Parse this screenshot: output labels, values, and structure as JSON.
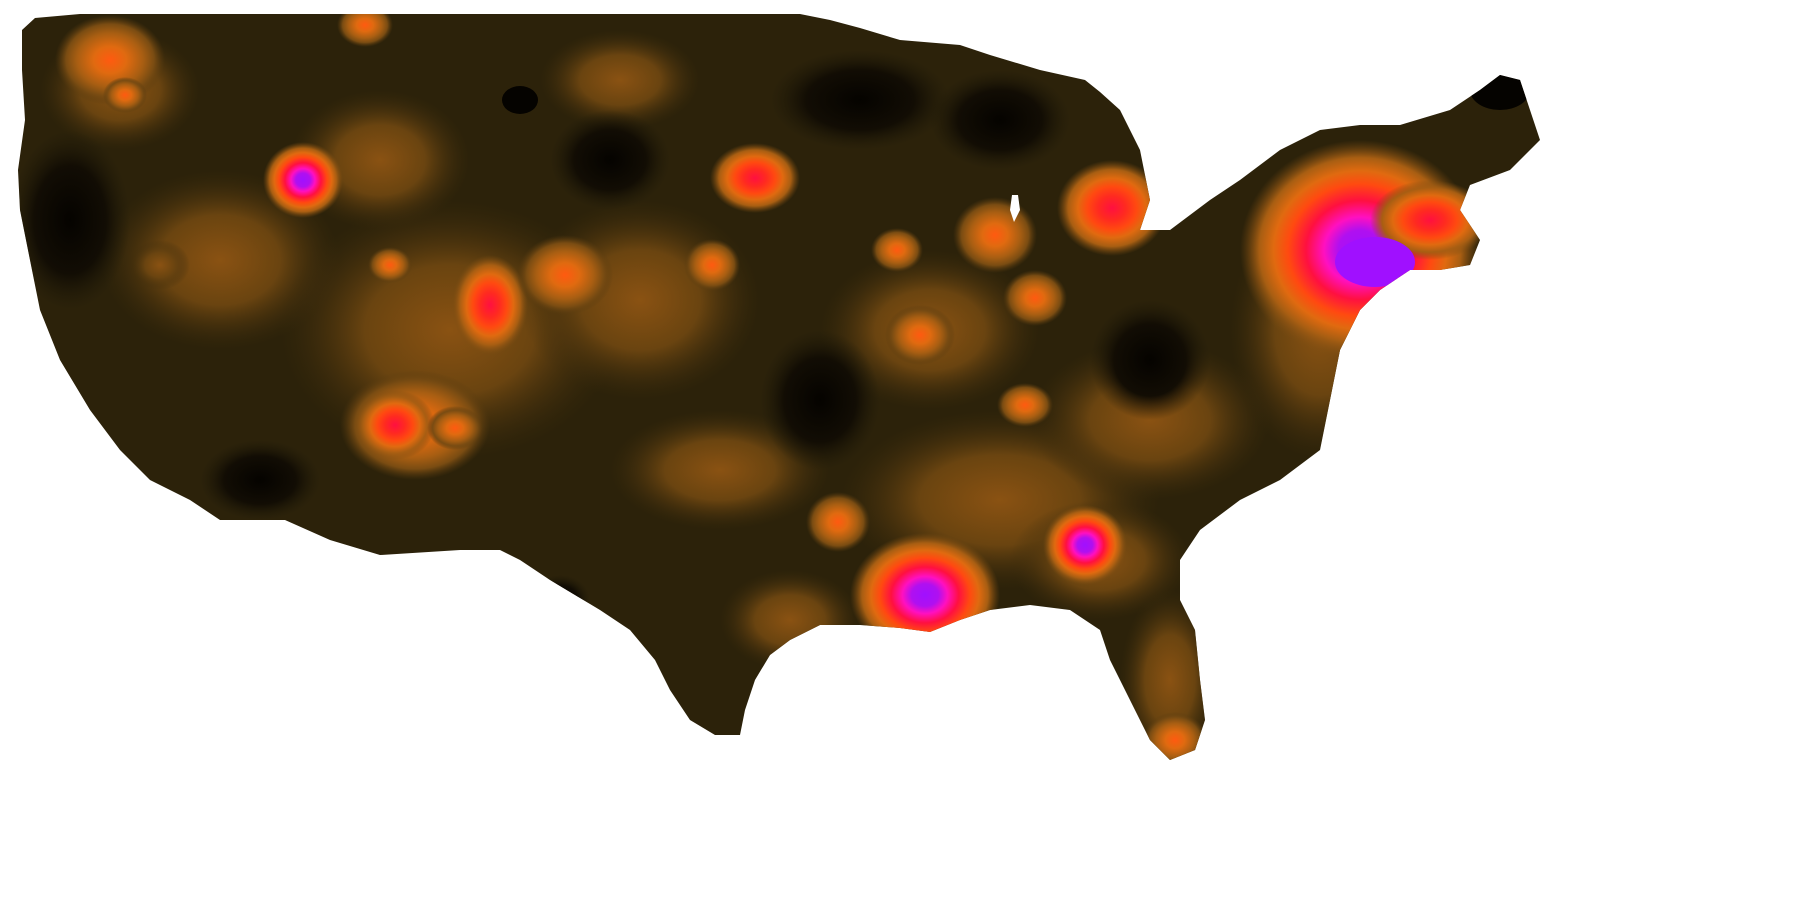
{
  "map": {
    "kind": "heatmap-choropleth",
    "region": "contiguous-united-states",
    "background": "#ffffff",
    "palette": {
      "base_dark": "#1f1a08",
      "very_dark": "#0e0b03",
      "band_1": "#2c220a",
      "band_2": "#3d2c0c",
      "band_3": "#573a0f",
      "band_4": "#7a4c12",
      "band_5": "#a85e12",
      "band_6": "#e06a10",
      "band_7": "#ff4a10",
      "band_8": "#ff1040",
      "band_9": "#ff10c0",
      "peak": "#a010ff"
    },
    "hotspots": [
      {
        "id": "northeast-corridor",
        "intensity": 1.0
      },
      {
        "id": "gulf-coast-new-orleans",
        "intensity": 1.0
      },
      {
        "id": "pacific-northwest-idaho",
        "intensity": 0.95
      },
      {
        "id": "great-lakes-detroit",
        "intensity": 0.85
      },
      {
        "id": "southeast-atlanta",
        "intensity": 0.85
      },
      {
        "id": "southwest-colorado",
        "intensity": 0.8
      },
      {
        "id": "great-basin-utah",
        "intensity": 0.7
      },
      {
        "id": "northern-plains",
        "intensity": 0.65
      },
      {
        "id": "chicago",
        "intensity": 0.65
      },
      {
        "id": "south-florida",
        "intensity": 0.6
      }
    ]
  }
}
